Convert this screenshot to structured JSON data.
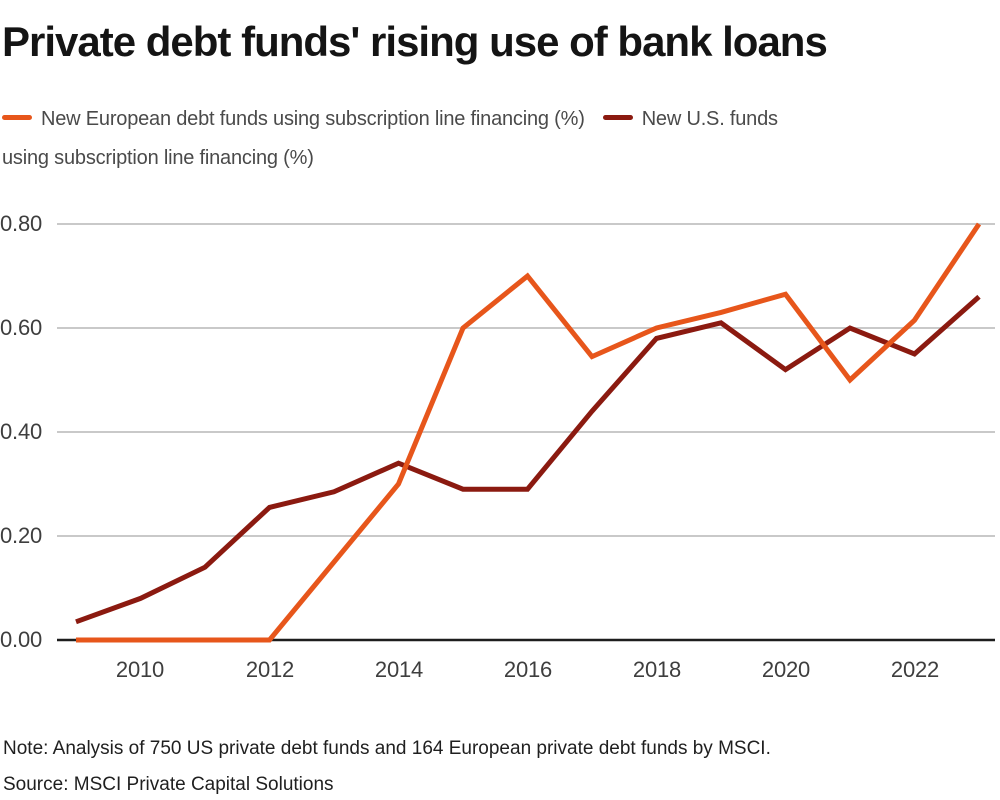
{
  "title": "Private debt funds' rising use of bank loans",
  "legend": {
    "items": [
      {
        "label": "New European debt funds using subscription line financing (%)",
        "color": "#e7561b"
      },
      {
        "label": "New U.S. funds using subscription line financing (%)",
        "color": "#8b1a10"
      }
    ]
  },
  "chart_data": {
    "type": "line",
    "x": [
      2009,
      2010,
      2011,
      2012,
      2013,
      2014,
      2015,
      2016,
      2017,
      2018,
      2019,
      2020,
      2021,
      2022,
      2023
    ],
    "series": [
      {
        "name": "New European debt funds using subscription line financing (%)",
        "color": "#e7561b",
        "values": [
          0.0,
          0.0,
          0.0,
          0.0,
          0.15,
          0.3,
          0.6,
          0.7,
          0.545,
          0.6,
          0.63,
          0.665,
          0.5,
          0.615,
          0.8
        ]
      },
      {
        "name": "New U.S. funds using subscription line financing (%)",
        "color": "#8b1a10",
        "values": [
          0.035,
          0.08,
          0.14,
          0.255,
          0.285,
          0.34,
          0.29,
          0.29,
          0.44,
          0.58,
          0.61,
          0.52,
          0.6,
          0.55,
          0.66
        ]
      }
    ],
    "title": "Private debt funds' rising use of bank loans",
    "xlabel": "",
    "ylabel": "",
    "ylim": [
      0.0,
      0.8
    ],
    "xlim": [
      2009,
      2023
    ],
    "y_ticks": [
      "0.00",
      "0.20",
      "0.40",
      "0.60",
      "0.80"
    ],
    "x_ticks": [
      "2010",
      "2012",
      "2014",
      "2016",
      "2018",
      "2020",
      "2022"
    ],
    "grid": "horizontal",
    "legend_position": "top"
  },
  "colors": {
    "background": "#ffffff",
    "gridline": "#c9c9c9",
    "axis": "#1d1d1d",
    "european_series": "#e7561b",
    "us_series": "#8b1a10"
  },
  "footnotes": {
    "note": "Note: Analysis of 750 US private debt funds and 164 European private debt funds by MSCI.",
    "source": "Source: MSCI Private Capital Solutions"
  }
}
